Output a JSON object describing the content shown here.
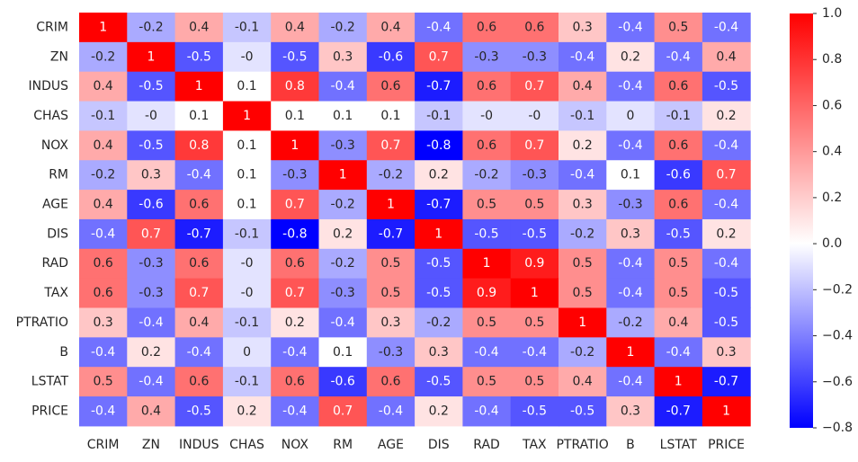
{
  "chart_data": {
    "type": "heatmap",
    "title": "",
    "xlabel": "",
    "ylabel": "",
    "row_labels": [
      "CRIM",
      "ZN",
      "INDUS",
      "CHAS",
      "NOX",
      "RM",
      "AGE",
      "DIS",
      "RAD",
      "TAX",
      "PTRATIO",
      "B",
      "LSTAT",
      "PRICE"
    ],
    "col_labels": [
      "CRIM",
      "ZN",
      "INDUS",
      "CHAS",
      "NOX",
      "RM",
      "AGE",
      "DIS",
      "RAD",
      "TAX",
      "PTRATIO",
      "B",
      "LSTAT",
      "PRICE"
    ],
    "values": [
      [
        1,
        -0.2,
        0.4,
        -0.1,
        0.4,
        -0.2,
        0.4,
        -0.4,
        0.6,
        0.6,
        0.3,
        -0.4,
        0.5,
        -0.4
      ],
      [
        -0.2,
        1,
        -0.5,
        0,
        -0.5,
        0.3,
        -0.6,
        0.7,
        -0.3,
        -0.3,
        -0.4,
        0.2,
        -0.4,
        0.4
      ],
      [
        0.4,
        -0.5,
        1,
        0.1,
        0.8,
        -0.4,
        0.6,
        -0.7,
        0.6,
        0.7,
        0.4,
        -0.4,
        0.6,
        -0.5
      ],
      [
        -0.1,
        0,
        0.1,
        1,
        0.1,
        0.1,
        0.1,
        -0.1,
        0,
        0,
        -0.1,
        0,
        -0.1,
        0.2
      ],
      [
        0.4,
        -0.5,
        0.8,
        0.1,
        1,
        -0.3,
        0.7,
        -0.8,
        0.6,
        0.7,
        0.2,
        -0.4,
        0.6,
        -0.4
      ],
      [
        -0.2,
        0.3,
        -0.4,
        0.1,
        -0.3,
        1,
        -0.2,
        0.2,
        -0.2,
        -0.3,
        -0.4,
        0.1,
        -0.6,
        0.7
      ],
      [
        0.4,
        -0.6,
        0.6,
        0.1,
        0.7,
        -0.2,
        1,
        -0.7,
        0.5,
        0.5,
        0.3,
        -0.3,
        0.6,
        -0.4
      ],
      [
        -0.4,
        0.7,
        -0.7,
        -0.1,
        -0.8,
        0.2,
        -0.7,
        1,
        -0.5,
        -0.5,
        -0.2,
        0.3,
        -0.5,
        0.2
      ],
      [
        0.6,
        -0.3,
        0.6,
        0,
        0.6,
        -0.2,
        0.5,
        -0.5,
        1,
        0.9,
        0.5,
        -0.4,
        0.5,
        -0.4
      ],
      [
        0.6,
        -0.3,
        0.7,
        0,
        0.7,
        -0.3,
        0.5,
        -0.5,
        0.9,
        1,
        0.5,
        -0.4,
        0.5,
        -0.5
      ],
      [
        0.3,
        -0.4,
        0.4,
        -0.1,
        0.2,
        -0.4,
        0.3,
        -0.2,
        0.5,
        0.5,
        1,
        -0.2,
        0.4,
        -0.5
      ],
      [
        -0.4,
        0.2,
        -0.4,
        0,
        -0.4,
        0.1,
        -0.3,
        0.3,
        -0.4,
        -0.4,
        -0.2,
        1,
        -0.4,
        0.3
      ],
      [
        0.5,
        -0.4,
        0.6,
        -0.1,
        0.6,
        -0.6,
        0.6,
        -0.5,
        0.5,
        0.5,
        0.4,
        -0.4,
        1,
        -0.7
      ],
      [
        -0.4,
        0.4,
        -0.5,
        0.2,
        -0.4,
        0.7,
        -0.4,
        0.2,
        -0.4,
        -0.5,
        -0.5,
        0.3,
        -0.7,
        1
      ]
    ],
    "colormap": "bwr",
    "color_low": "#0000ff",
    "color_mid": "#ffffff",
    "color_high": "#ff0000",
    "vmin": -0.8,
    "vmax": 1.0,
    "annotations": true,
    "colorbar": {
      "ticks": [
        1.0,
        0.8,
        0.6,
        0.4,
        0.2,
        0.0,
        -0.2,
        -0.4,
        -0.6,
        -0.8
      ],
      "tick_labels": [
        "1.0",
        "0.8",
        "0.6",
        "0.4",
        "0.2",
        "0.0",
        "−0.2",
        "−0.4",
        "−0.6",
        "−0.8"
      ]
    }
  }
}
